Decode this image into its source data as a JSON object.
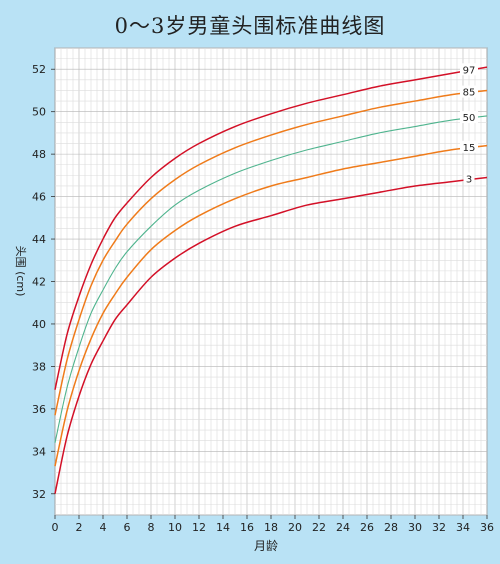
{
  "chart_data": {
    "type": "line",
    "title": "0～3岁男童头围标准曲线图",
    "xlabel": "月龄",
    "ylabel": "头围 (cm)",
    "xlim": [
      0,
      36
    ],
    "ylim": [
      31,
      53
    ],
    "x_ticks": [
      0,
      2,
      4,
      6,
      8,
      10,
      12,
      14,
      16,
      18,
      20,
      22,
      24,
      26,
      28,
      30,
      32,
      34,
      36
    ],
    "y_ticks": [
      32,
      34,
      36,
      38,
      40,
      42,
      44,
      46,
      48,
      50,
      52
    ],
    "grid": true,
    "x": [
      0,
      1,
      2,
      3,
      4,
      5,
      6,
      8,
      10,
      12,
      15,
      18,
      21,
      24,
      27,
      30,
      33,
      36
    ],
    "series": [
      {
        "name": "97",
        "color": "#d31027",
        "values": [
          36.9,
          39.5,
          41.3,
          42.8,
          44.0,
          45.0,
          45.7,
          46.9,
          47.8,
          48.5,
          49.3,
          49.9,
          50.4,
          50.8,
          51.2,
          51.5,
          51.8,
          52.1
        ]
      },
      {
        "name": "85",
        "color": "#ef7b1a",
        "values": [
          35.7,
          38.3,
          40.2,
          41.8,
          43.0,
          43.9,
          44.7,
          45.9,
          46.8,
          47.5,
          48.3,
          48.9,
          49.4,
          49.8,
          50.2,
          50.5,
          50.8,
          51.0
        ]
      },
      {
        "name": "50",
        "color": "#4fb48e",
        "values": [
          34.4,
          37.0,
          38.9,
          40.5,
          41.6,
          42.6,
          43.4,
          44.6,
          45.6,
          46.3,
          47.1,
          47.7,
          48.2,
          48.6,
          49.0,
          49.3,
          49.6,
          49.8
        ]
      },
      {
        "name": "15",
        "color": "#ef7b1a",
        "values": [
          33.3,
          35.9,
          37.8,
          39.3,
          40.5,
          41.4,
          42.2,
          43.5,
          44.4,
          45.1,
          45.9,
          46.5,
          46.9,
          47.3,
          47.6,
          47.9,
          48.2,
          48.4
        ]
      },
      {
        "name": "3",
        "color": "#d31027",
        "values": [
          32.0,
          34.7,
          36.6,
          38.1,
          39.2,
          40.2,
          40.9,
          42.2,
          43.1,
          43.8,
          44.6,
          45.1,
          45.6,
          45.9,
          46.2,
          46.5,
          46.7,
          46.9
        ]
      }
    ]
  }
}
